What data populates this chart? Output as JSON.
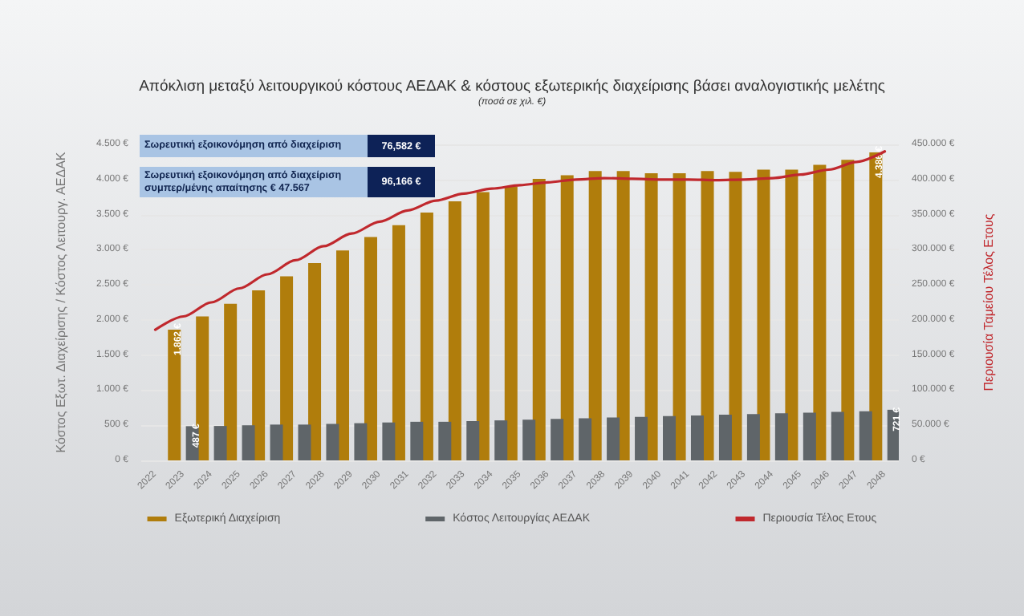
{
  "chart_data": {
    "type": "bar",
    "title": "Απόκλιση μεταξύ λειτουργικού κόστους ΑΕΔΑΚ & κόστους εξωτερικής διαχείρισης βάσει αναλογιστικής μελέτης",
    "subtitle": "(ποσά σε χιλ. €)",
    "ylabel": "Κόστος Εξωτ. Διαχείρισης / Κόστος Λειτουργ. ΑΕΔΑΚ",
    "y2label": "Περιουσία Ταμείου Τέλος Ετους",
    "annotations": [
      "Σωρευτική εξοικονόμηση από διαχείριση",
      "76,582 €",
      "Σωρευτική εξοικονόμηση από διαχείριση συμπερ/μένης απαίτησης € 47.567",
      "96,166 €"
    ],
    "categories": [
      "2022",
      "2023",
      "2024",
      "2025",
      "2026",
      "2027",
      "2028",
      "2029",
      "2030",
      "2031",
      "2032",
      "2033",
      "2034",
      "2035",
      "2036",
      "2037",
      "2038",
      "2039",
      "2040",
      "2041",
      "2042",
      "2043",
      "2044",
      "2045",
      "2046",
      "2047",
      "2048"
    ],
    "series": [
      {
        "name": "Εξωτερική Διαχείριση",
        "color": "#b07d0c",
        "values": [
          null,
          1862,
          2050,
          2230,
          2420,
          2620,
          2810,
          2990,
          3180,
          3350,
          3530,
          3690,
          3820,
          3900,
          4010,
          4060,
          4120,
          4120,
          4090,
          4090,
          4120,
          4110,
          4140,
          4140,
          4210,
          4280,
          4386
        ],
        "value_labels": [
          null,
          "1.862 €",
          null,
          null,
          null,
          null,
          null,
          null,
          null,
          null,
          null,
          null,
          null,
          null,
          null,
          null,
          null,
          null,
          null,
          null,
          null,
          null,
          null,
          null,
          null,
          null,
          "4.386 €"
        ]
      },
      {
        "name": "Κόστος Λειτουργίας ΑΕΔΑΚ",
        "color": "#5f6569",
        "values": [
          null,
          487,
          490,
          500,
          510,
          510,
          520,
          530,
          540,
          550,
          550,
          560,
          570,
          580,
          590,
          600,
          610,
          620,
          630,
          640,
          650,
          660,
          670,
          680,
          690,
          700,
          721
        ],
        "value_labels": [
          null,
          "487 €",
          null,
          null,
          null,
          null,
          null,
          null,
          null,
          null,
          null,
          null,
          null,
          null,
          null,
          null,
          null,
          null,
          null,
          null,
          null,
          null,
          null,
          null,
          null,
          null,
          "721 €"
        ]
      },
      {
        "name": "Περιουσία Τέλος Ετους",
        "type": "line",
        "axis": "y2",
        "color": "#c0282d",
        "marker": "none",
        "line_style": "solid",
        "values": [
          186000,
          205000,
          225000,
          245000,
          265000,
          285000,
          305000,
          323000,
          340000,
          356000,
          370000,
          380000,
          387000,
          392000,
          396000,
          400000,
          402000,
          401000,
          400000,
          400000,
          399000,
          400000,
          402000,
          407000,
          414000,
          425000,
          440000
        ]
      }
    ],
    "ylim": [
      0,
      4500
    ],
    "yticks": [
      {
        "value": 0,
        "label": "0 €"
      },
      {
        "value": 500,
        "label": "500 €"
      },
      {
        "value": 1000,
        "label": "1.000 €"
      },
      {
        "value": 1500,
        "label": "1.500 €"
      },
      {
        "value": 2000,
        "label": "2.000 €"
      },
      {
        "value": 2500,
        "label": "2.500 €"
      },
      {
        "value": 3000,
        "label": "3.000 €"
      },
      {
        "value": 3500,
        "label": "3.500 €"
      },
      {
        "value": 4000,
        "label": "4.000 €"
      },
      {
        "value": 4500,
        "label": "4.500 €"
      }
    ],
    "y2lim": [
      0,
      450000
    ],
    "y2ticks": [
      {
        "value": 0,
        "label": "0 €"
      },
      {
        "value": 50000,
        "label": "50.000 €"
      },
      {
        "value": 100000,
        "label": "100.000 €"
      },
      {
        "value": 150000,
        "label": "150.000 €"
      },
      {
        "value": 200000,
        "label": "200.000 €"
      },
      {
        "value": 250000,
        "label": "250.000 €"
      },
      {
        "value": 300000,
        "label": "300.000 €"
      },
      {
        "value": 350000,
        "label": "350.000 €"
      },
      {
        "value": 400000,
        "label": "400.000 €"
      },
      {
        "value": 450000,
        "label": "450.000 €"
      }
    ],
    "grid": "y",
    "legend": "bottom"
  }
}
